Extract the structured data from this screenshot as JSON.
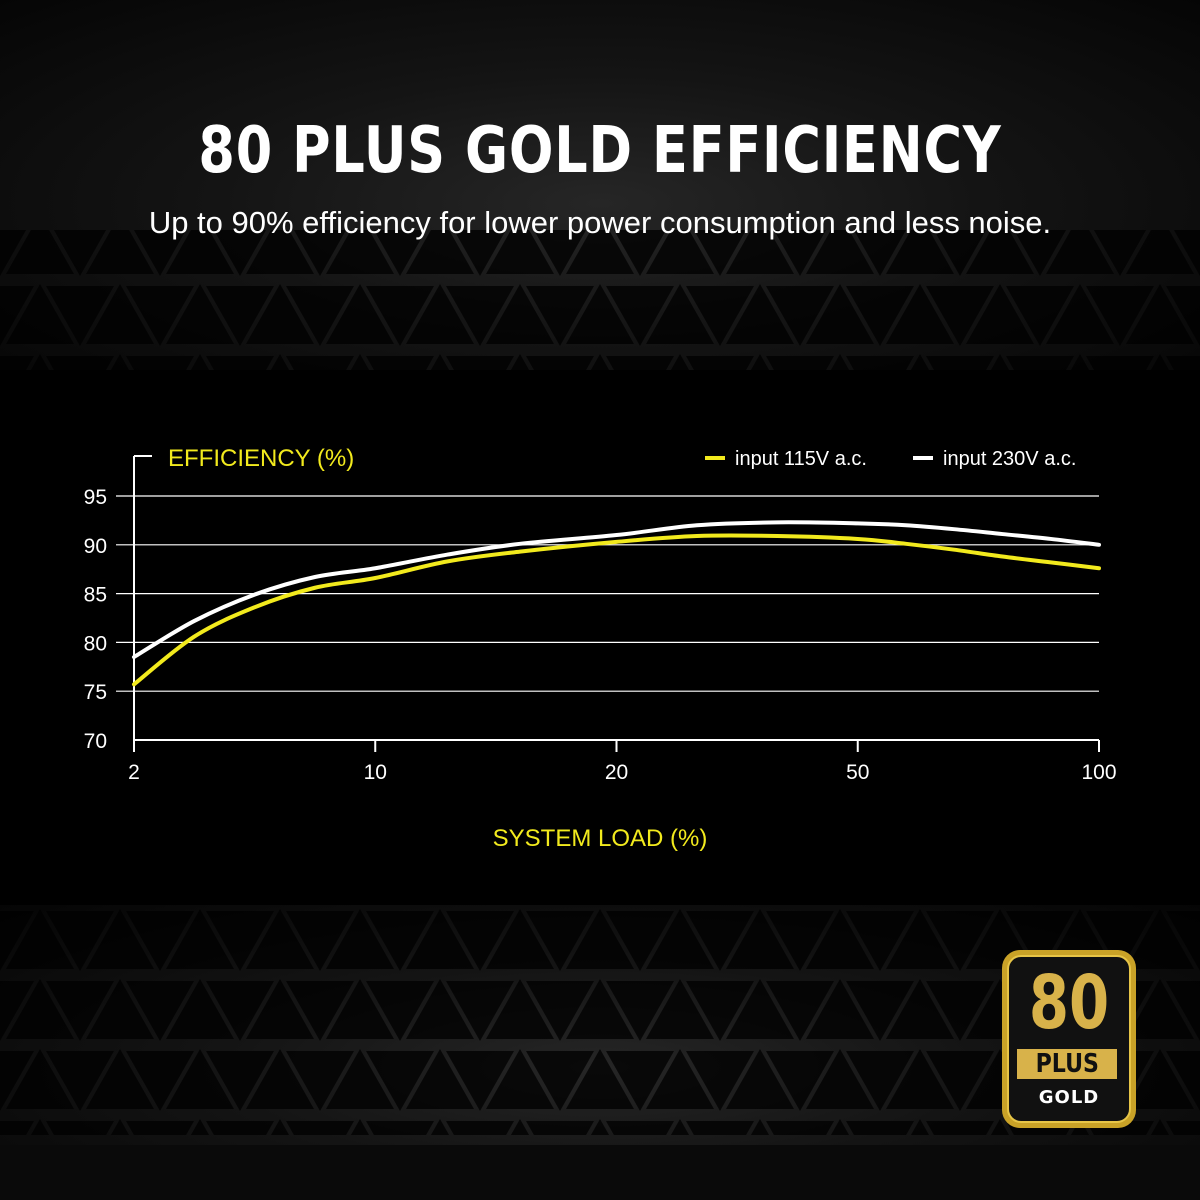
{
  "header": {
    "title": "80 PLUS GOLD EFFICIENCY",
    "subtitle": "Up to 90% efficiency for lower power consumption and less noise."
  },
  "badge": {
    "number": "80",
    "plus": "PLUS",
    "tier": "GOLD",
    "color": "#c9a227"
  },
  "chart_data": {
    "type": "line",
    "ylabel": "EFFICIENCY (%)",
    "xlabel": "SYSTEM LOAD (%)",
    "x_ticks": [
      2,
      10,
      20,
      50,
      100
    ],
    "y_ticks": [
      70,
      75,
      80,
      85,
      90,
      95
    ],
    "ylim": [
      70,
      95
    ],
    "grid": true,
    "legend_position": "top-right",
    "series": [
      {
        "name": "input 115V a.c.",
        "color": "#f2ea1d",
        "points": [
          [
            2,
            75.7
          ],
          [
            4,
            80.6
          ],
          [
            6,
            83.6
          ],
          [
            8,
            85.6
          ],
          [
            10,
            86.6
          ],
          [
            13,
            88.3
          ],
          [
            16,
            89.3
          ],
          [
            20,
            90.3
          ],
          [
            30,
            90.9
          ],
          [
            40,
            90.9
          ],
          [
            50,
            90.6
          ],
          [
            60,
            90.1
          ],
          [
            70,
            89.5
          ],
          [
            80,
            88.8
          ],
          [
            90,
            88.2
          ],
          [
            100,
            87.6
          ]
        ]
      },
      {
        "name": "input 230V a.c.",
        "color": "#ffffff",
        "points": [
          [
            2,
            78.5
          ],
          [
            4,
            82.2
          ],
          [
            6,
            84.9
          ],
          [
            8,
            86.7
          ],
          [
            10,
            87.6
          ],
          [
            13,
            89.0
          ],
          [
            16,
            90.1
          ],
          [
            20,
            91.0
          ],
          [
            30,
            92.0
          ],
          [
            40,
            92.3
          ],
          [
            50,
            92.2
          ],
          [
            60,
            92.0
          ],
          [
            70,
            91.6
          ],
          [
            80,
            91.1
          ],
          [
            90,
            90.6
          ],
          [
            100,
            90.0
          ]
        ]
      }
    ]
  }
}
